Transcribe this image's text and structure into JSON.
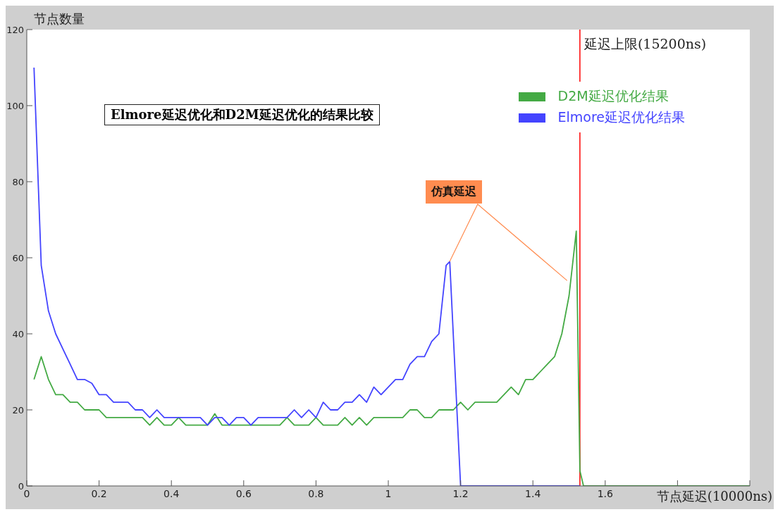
{
  "chart_data": {
    "type": "line",
    "title": "Elmore延迟优化和D2M延迟优化的结果比较",
    "xlabel": "节点延迟(10000ns)",
    "ylabel": "节点数量",
    "annotations": [
      "仿真延迟"
    ],
    "xlim": [
      0,
      2
    ],
    "xticks": [
      0,
      0.2,
      0.4,
      0.6,
      0.8,
      1,
      1.2,
      1.4,
      1.6,
      {
        "value": 1.8,
        "label": null
      },
      {
        "value": 2,
        "label": null
      }
    ],
    "ylim": [
      0,
      120
    ],
    "yticks": [
      0,
      20,
      40,
      60,
      80,
      100,
      120
    ],
    "grid": false,
    "legend": "top right",
    "marker": "none",
    "line_style": "solid",
    "ref_lines": [
      {
        "axis": "x",
        "value": 1.53,
        "label": "延迟上限(15200ns)",
        "color": "#ff0000"
      }
    ],
    "series": [
      {
        "name": "D2M延迟优化结果",
        "color": "#44aa44",
        "x": [
          0.02,
          0.04,
          0.06,
          0.08,
          0.1,
          0.12,
          0.14,
          0.16,
          0.18,
          0.2,
          0.22,
          0.24,
          0.26,
          0.28,
          0.3,
          0.32,
          0.34,
          0.36,
          0.38,
          0.4,
          0.42,
          0.44,
          0.46,
          0.48,
          0.5,
          0.52,
          0.54,
          0.56,
          0.58,
          0.6,
          0.62,
          0.64,
          0.66,
          0.68,
          0.7,
          0.72,
          0.74,
          0.76,
          0.78,
          0.8,
          0.82,
          0.84,
          0.86,
          0.88,
          0.9,
          0.92,
          0.94,
          0.96,
          0.98,
          1,
          1.02,
          1.04,
          1.06,
          1.08,
          1.1,
          1.12,
          1.14,
          1.16,
          1.18,
          1.2,
          1.22,
          1.24,
          1.26,
          1.28,
          1.3,
          1.32,
          1.34,
          1.36,
          1.38,
          1.4,
          1.42,
          1.44,
          1.46,
          1.48,
          1.5,
          1.52,
          1.53,
          1.54,
          2
        ],
        "values": [
          28,
          34,
          28,
          24,
          24,
          22,
          22,
          20,
          20,
          20,
          18,
          18,
          18,
          18,
          18,
          18,
          16,
          18,
          16,
          16,
          18,
          16,
          16,
          16,
          16,
          19,
          16,
          16,
          16,
          16,
          16,
          16,
          16,
          16,
          16,
          18,
          16,
          16,
          16,
          18,
          16,
          16,
          16,
          18,
          16,
          18,
          16,
          18,
          18,
          18,
          18,
          18,
          20,
          20,
          18,
          18,
          20,
          20,
          20,
          22,
          20,
          22,
          22,
          22,
          22,
          24,
          26,
          24,
          28,
          28,
          30,
          32,
          34,
          40,
          50,
          67,
          4,
          0,
          0
        ]
      },
      {
        "name": "Elmore延迟优化结果",
        "color": "#4444ff",
        "x": [
          0.02,
          0.04,
          0.06,
          0.08,
          0.1,
          0.12,
          0.14,
          0.16,
          0.18,
          0.2,
          0.22,
          0.24,
          0.26,
          0.28,
          0.3,
          0.32,
          0.34,
          0.36,
          0.38,
          0.4,
          0.42,
          0.44,
          0.46,
          0.48,
          0.5,
          0.52,
          0.54,
          0.56,
          0.58,
          0.6,
          0.62,
          0.64,
          0.66,
          0.68,
          0.7,
          0.72,
          0.74,
          0.76,
          0.78,
          0.8,
          0.82,
          0.84,
          0.86,
          0.88,
          0.9,
          0.92,
          0.94,
          0.96,
          0.98,
          1,
          1.02,
          1.04,
          1.06,
          1.08,
          1.1,
          1.12,
          1.14,
          1.16,
          1.17,
          1.2,
          1.53
        ],
        "values": [
          110,
          58,
          46,
          40,
          36,
          32,
          28,
          28,
          27,
          24,
          24,
          22,
          22,
          22,
          20,
          20,
          18,
          20,
          18,
          18,
          18,
          18,
          18,
          18,
          16,
          18,
          18,
          16,
          18,
          18,
          16,
          18,
          18,
          18,
          18,
          18,
          20,
          18,
          20,
          18,
          22,
          20,
          20,
          22,
          22,
          24,
          22,
          26,
          24,
          26,
          28,
          28,
          32,
          34,
          34,
          38,
          40,
          58,
          59,
          0,
          0
        ]
      }
    ]
  }
}
